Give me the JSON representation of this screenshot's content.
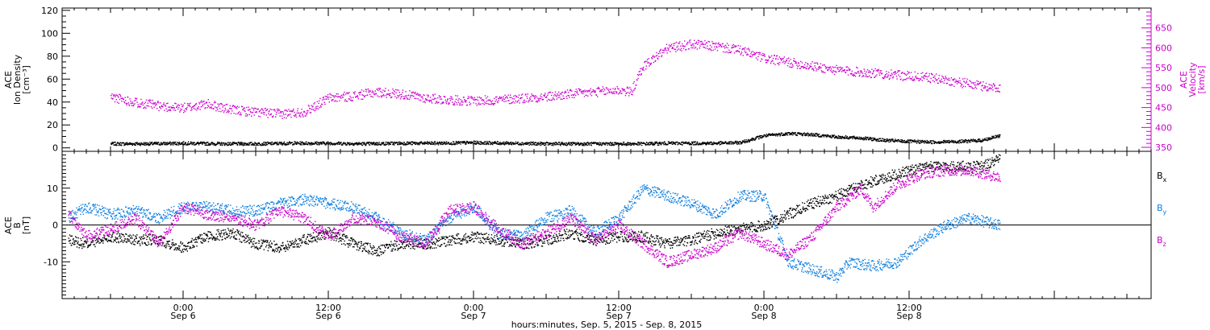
{
  "chart_data": [
    {
      "type": "scatter",
      "title": "",
      "ylabel": [
        "ACE",
        "Ion Density",
        "[cm⁻³]"
      ],
      "ylim": [
        -3,
        122
      ],
      "yticks": [
        0,
        20,
        40,
        60,
        80,
        100,
        120
      ],
      "y2label": [
        "ACE",
        "Velocity",
        "[km/s]"
      ],
      "y2lim": [
        340,
        700
      ],
      "y2ticks": [
        350,
        400,
        450,
        500,
        550,
        600,
        650
      ],
      "series": [
        {
          "name": "",
          "axis": "left",
          "color": "#000000",
          "points": [
            [
              -6,
              4
            ],
            [
              -3,
              4
            ],
            [
              0,
              4.5
            ],
            [
              3,
              4
            ],
            [
              6,
              4
            ],
            [
              9,
              4.5
            ],
            [
              12,
              4.5
            ],
            [
              15,
              4
            ],
            [
              18,
              4.5
            ],
            [
              21,
              4.5
            ],
            [
              24,
              5
            ],
            [
              27,
              4.5
            ],
            [
              30,
              4
            ],
            [
              33,
              4
            ],
            [
              36,
              4
            ],
            [
              38,
              4
            ],
            [
              40,
              4.5
            ],
            [
              42,
              4.5
            ],
            [
              44,
              4.5
            ],
            [
              46,
              5
            ],
            [
              48,
              11
            ],
            [
              50,
              13
            ],
            [
              52,
              12
            ],
            [
              54,
              10
            ],
            [
              56,
              9
            ],
            [
              58,
              7
            ],
            [
              60,
              6
            ],
            [
              62,
              5.5
            ],
            [
              64,
              6
            ],
            [
              66,
              7
            ],
            [
              67.5,
              11
            ]
          ]
        },
        {
          "name": "",
          "axis": "right",
          "color": "#cc00cc",
          "points": [
            [
              -6,
              478
            ],
            [
              -4,
              465
            ],
            [
              -2,
              455
            ],
            [
              0,
              450
            ],
            [
              2,
              460
            ],
            [
              4,
              445
            ],
            [
              6,
              440
            ],
            [
              8,
              435
            ],
            [
              10,
              440
            ],
            [
              12,
              475
            ],
            [
              14,
              480
            ],
            [
              16,
              490
            ],
            [
              18,
              485
            ],
            [
              20,
              475
            ],
            [
              22,
              470
            ],
            [
              24,
              468
            ],
            [
              26,
              470
            ],
            [
              28,
              475
            ],
            [
              30,
              478
            ],
            [
              32,
              485
            ],
            [
              34,
              490
            ],
            [
              36,
              495
            ],
            [
              37,
              490
            ],
            [
              38,
              555
            ],
            [
              40,
              600
            ],
            [
              42,
              610
            ],
            [
              44,
              605
            ],
            [
              46,
              595
            ],
            [
              48,
              575
            ],
            [
              50,
              565
            ],
            [
              52,
              555
            ],
            [
              54,
              545
            ],
            [
              56,
              540
            ],
            [
              58,
              535
            ],
            [
              60,
              530
            ],
            [
              62,
              525
            ],
            [
              64,
              515
            ],
            [
              66,
              505
            ],
            [
              67.5,
              500
            ]
          ]
        }
      ]
    },
    {
      "type": "scatter",
      "title": "",
      "ylabel": [
        "ACE",
        "B",
        "[nT]"
      ],
      "ylim": [
        -20,
        20
      ],
      "yticks": [
        -10,
        0,
        10
      ],
      "xlabel": "hours:minutes, Sep.  5, 2015 - Sep.  8, 2015",
      "xlim": [
        -10,
        80
      ],
      "xticks": [
        {
          "x": 0,
          "time": "0:00",
          "date": "Sep 6"
        },
        {
          "x": 12,
          "time": "12:00",
          "date": "Sep 6"
        },
        {
          "x": 24,
          "time": "0:00",
          "date": "Sep 7"
        },
        {
          "x": 36,
          "time": "12:00",
          "date": "Sep 7"
        },
        {
          "x": 48,
          "time": "0:00",
          "date": "Sep 8"
        },
        {
          "x": 60,
          "time": "12:00",
          "date": "Sep 8"
        }
      ],
      "x_units": "hours since 0:00 Sep 6, 2015",
      "series": [
        {
          "name": "Bx",
          "label_main": "B",
          "label_sub": "x",
          "color": "#000000",
          "points": [
            [
              -9.5,
              -4
            ],
            [
              -8,
              -5
            ],
            [
              -6,
              -3
            ],
            [
              -4,
              -4
            ],
            [
              -2,
              -4
            ],
            [
              0,
              -6
            ],
            [
              2,
              -3
            ],
            [
              4,
              -2
            ],
            [
              6,
              -5
            ],
            [
              8,
              -6
            ],
            [
              10,
              -4
            ],
            [
              12,
              -2
            ],
            [
              14,
              -5
            ],
            [
              16,
              -7
            ],
            [
              18,
              -5
            ],
            [
              20,
              -5
            ],
            [
              22,
              -4
            ],
            [
              24,
              -3
            ],
            [
              26,
              -4
            ],
            [
              28,
              -5
            ],
            [
              30,
              -4
            ],
            [
              32,
              -2
            ],
            [
              34,
              -4
            ],
            [
              36,
              -3
            ],
            [
              38,
              -3
            ],
            [
              40,
              -5
            ],
            [
              42,
              -4
            ],
            [
              44,
              -2
            ],
            [
              46,
              -1
            ],
            [
              48,
              0
            ],
            [
              50,
              3
            ],
            [
              52,
              6
            ],
            [
              54,
              8
            ],
            [
              56,
              11
            ],
            [
              58,
              13
            ],
            [
              60,
              15
            ],
            [
              62,
              16
            ],
            [
              64,
              16
            ],
            [
              66,
              16
            ],
            [
              67.5,
              18
            ]
          ]
        },
        {
          "name": "By",
          "label_main": "B",
          "label_sub": "y",
          "color": "#1080e0",
          "points": [
            [
              -9.5,
              2
            ],
            [
              -8,
              5
            ],
            [
              -6,
              3
            ],
            [
              -4,
              4
            ],
            [
              -2,
              2
            ],
            [
              0,
              5
            ],
            [
              2,
              5
            ],
            [
              4,
              4
            ],
            [
              6,
              4
            ],
            [
              8,
              6
            ],
            [
              10,
              7
            ],
            [
              12,
              6
            ],
            [
              14,
              5
            ],
            [
              16,
              2
            ],
            [
              18,
              -2
            ],
            [
              20,
              -4
            ],
            [
              22,
              2
            ],
            [
              24,
              5
            ],
            [
              26,
              -2
            ],
            [
              28,
              -3
            ],
            [
              30,
              2
            ],
            [
              32,
              4
            ],
            [
              34,
              -2
            ],
            [
              36,
              2
            ],
            [
              38,
              10
            ],
            [
              40,
              8
            ],
            [
              42,
              6
            ],
            [
              44,
              3
            ],
            [
              46,
              8
            ],
            [
              48,
              8
            ],
            [
              50,
              -10
            ],
            [
              52,
              -12
            ],
            [
              54,
              -14
            ],
            [
              55,
              -10
            ],
            [
              57,
              -11
            ],
            [
              59,
              -10
            ],
            [
              61,
              -4
            ],
            [
              63,
              0
            ],
            [
              65,
              2
            ],
            [
              67.5,
              0
            ]
          ]
        },
        {
          "name": "Bz",
          "label_main": "B",
          "label_sub": "z",
          "color": "#cc00cc",
          "points": [
            [
              -9.5,
              3
            ],
            [
              -8,
              -3
            ],
            [
              -6,
              -1
            ],
            [
              -4,
              2
            ],
            [
              -2,
              -5
            ],
            [
              0,
              5
            ],
            [
              2,
              3
            ],
            [
              4,
              2
            ],
            [
              6,
              0
            ],
            [
              8,
              4
            ],
            [
              10,
              2
            ],
            [
              12,
              -3
            ],
            [
              14,
              2
            ],
            [
              16,
              1
            ],
            [
              18,
              -3
            ],
            [
              20,
              -5
            ],
            [
              22,
              4
            ],
            [
              24,
              5
            ],
            [
              26,
              -1
            ],
            [
              28,
              -5
            ],
            [
              30,
              -2
            ],
            [
              32,
              2
            ],
            [
              34,
              -4
            ],
            [
              36,
              0
            ],
            [
              38,
              -5
            ],
            [
              40,
              -10
            ],
            [
              42,
              -8
            ],
            [
              44,
              -6
            ],
            [
              46,
              -2
            ],
            [
              48,
              -5
            ],
            [
              50,
              -8
            ],
            [
              52,
              -3
            ],
            [
              54,
              5
            ],
            [
              56,
              10
            ],
            [
              57,
              5
            ],
            [
              59,
              11
            ],
            [
              61,
              14
            ],
            [
              63,
              15
            ],
            [
              65,
              15
            ],
            [
              67.5,
              13
            ]
          ]
        }
      ]
    }
  ]
}
